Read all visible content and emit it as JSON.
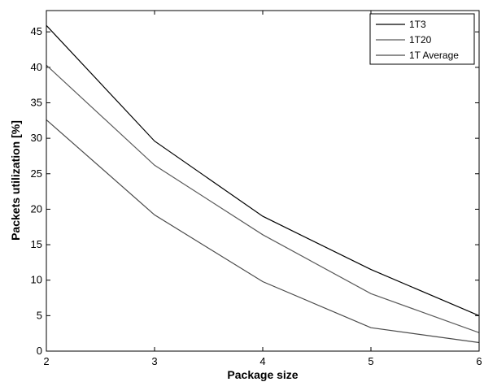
{
  "chart_data": {
    "type": "line",
    "title": "",
    "xlabel": "Package size",
    "ylabel": "Packets utilization [%]",
    "x": [
      2,
      3,
      4,
      5,
      6
    ],
    "xlim": [
      2,
      6
    ],
    "ylim": [
      0,
      48
    ],
    "xticks": [
      2,
      3,
      4,
      5,
      6
    ],
    "yticks": [
      0,
      5,
      10,
      15,
      20,
      25,
      30,
      35,
      40,
      45
    ],
    "grid": false,
    "legend_position": "top-right",
    "series": [
      {
        "name": "1T3",
        "color": "#000000",
        "values": [
          45.9,
          29.6,
          19.0,
          11.5,
          5.0
        ]
      },
      {
        "name": "1T20",
        "color": "#5a5a5a",
        "values": [
          40.3,
          26.2,
          16.4,
          8.1,
          2.6
        ]
      },
      {
        "name": "1T Average",
        "color": "#4a4a4a",
        "values": [
          32.6,
          19.2,
          9.8,
          3.3,
          1.2
        ]
      }
    ]
  }
}
